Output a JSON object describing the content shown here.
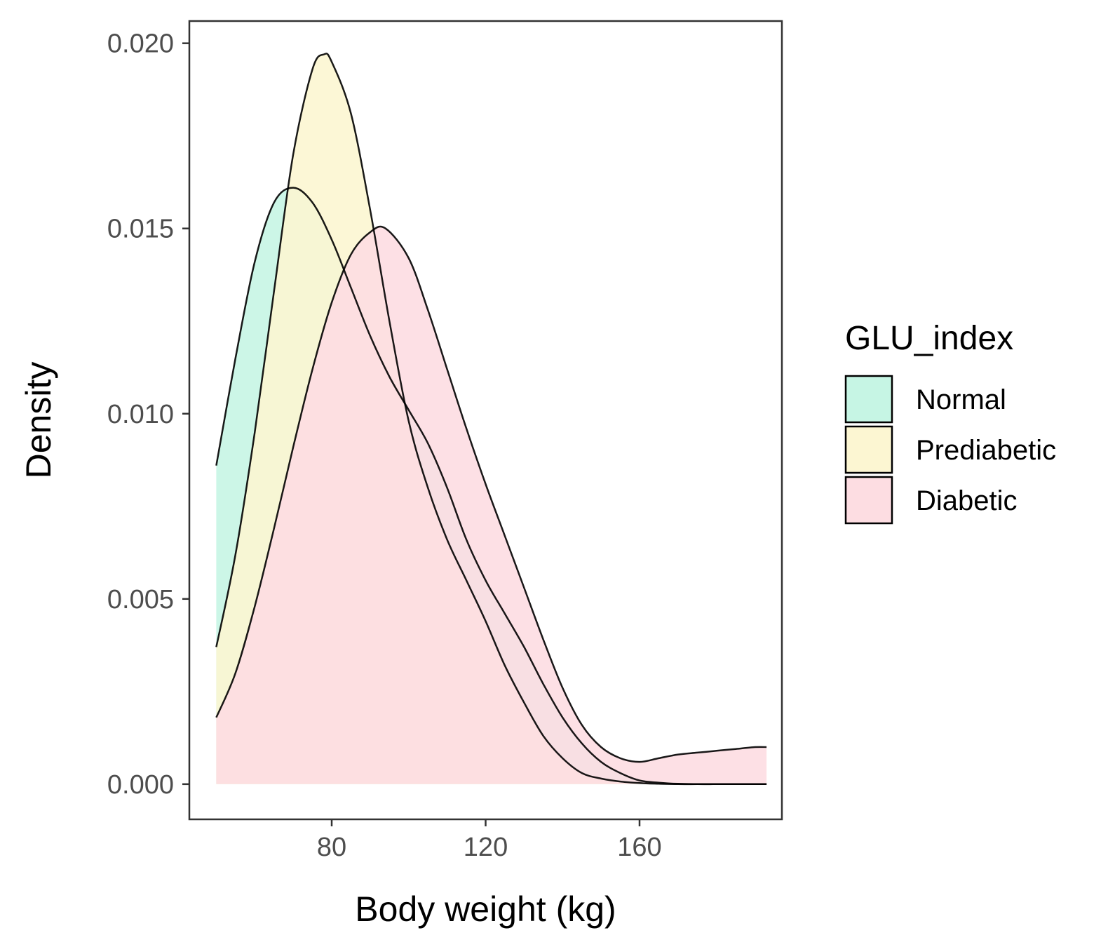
{
  "chart_data": {
    "type": "area",
    "subtype": "density",
    "xlabel": "Body weight (kg)",
    "ylabel": "Density",
    "xlim": [
      43,
      197
    ],
    "ylim": [
      -0.00095,
      0.0206
    ],
    "x_ticks": [
      80,
      120,
      160
    ],
    "y_ticks": [
      0.0,
      0.005,
      0.01,
      0.015,
      0.02
    ],
    "y_tick_labels": [
      "0.000",
      "0.005",
      "0.010",
      "0.015",
      "0.020"
    ],
    "grid": false,
    "legend": {
      "title": "GLU_index",
      "position": "right"
    },
    "series": [
      {
        "name": "Normal",
        "color": "#c6f5e4",
        "x": [
          50,
          55,
          60,
          65,
          70,
          75,
          80,
          85,
          90,
          95,
          100,
          105,
          110,
          115,
          120,
          125,
          130,
          135,
          140,
          145,
          150,
          155,
          160,
          165,
          170,
          175,
          180,
          185,
          190,
          193
        ],
        "y": [
          0.0086,
          0.0115,
          0.0141,
          0.0157,
          0.0161,
          0.0157,
          0.0147,
          0.0134,
          0.0121,
          0.011,
          0.0101,
          0.0092,
          0.008,
          0.0066,
          0.0055,
          0.0046,
          0.0037,
          0.0027,
          0.0018,
          0.0011,
          0.0006,
          0.0003,
          0.0001,
          4e-05,
          1e-05,
          0.0,
          0.0,
          0.0,
          0.0,
          0.0
        ]
      },
      {
        "name": "Prediabetic",
        "color": "#fcf6d2",
        "x": [
          50,
          55,
          60,
          65,
          70,
          75,
          78,
          80,
          85,
          90,
          95,
          100,
          105,
          110,
          115,
          120,
          125,
          130,
          135,
          140,
          145,
          150,
          155,
          160,
          165,
          170,
          175,
          180,
          185,
          190,
          193
        ],
        "y": [
          0.0037,
          0.0062,
          0.0095,
          0.0133,
          0.017,
          0.0193,
          0.0197,
          0.0195,
          0.0181,
          0.0155,
          0.0125,
          0.0098,
          0.008,
          0.0066,
          0.0055,
          0.0044,
          0.0032,
          0.0022,
          0.0013,
          0.0007,
          0.0003,
          0.00015,
          7e-05,
          3e-05,
          1e-05,
          0.0,
          0.0,
          0.0,
          0.0,
          0.0,
          0.0
        ]
      },
      {
        "name": "Diabetic",
        "color": "#fddde2",
        "x": [
          50,
          55,
          60,
          65,
          70,
          75,
          80,
          85,
          90,
          94,
          100,
          105,
          110,
          115,
          120,
          125,
          130,
          135,
          140,
          145,
          150,
          155,
          160,
          165,
          170,
          175,
          180,
          185,
          190,
          193
        ],
        "y": [
          0.0018,
          0.003,
          0.0048,
          0.0069,
          0.0091,
          0.0112,
          0.013,
          0.0143,
          0.0149,
          0.015,
          0.0142,
          0.0128,
          0.0112,
          0.0096,
          0.0081,
          0.0067,
          0.0053,
          0.0039,
          0.0026,
          0.0016,
          0.001,
          0.0007,
          0.0006,
          0.0007,
          0.0008,
          0.00085,
          0.0009,
          0.00095,
          0.001,
          0.001
        ]
      }
    ]
  }
}
